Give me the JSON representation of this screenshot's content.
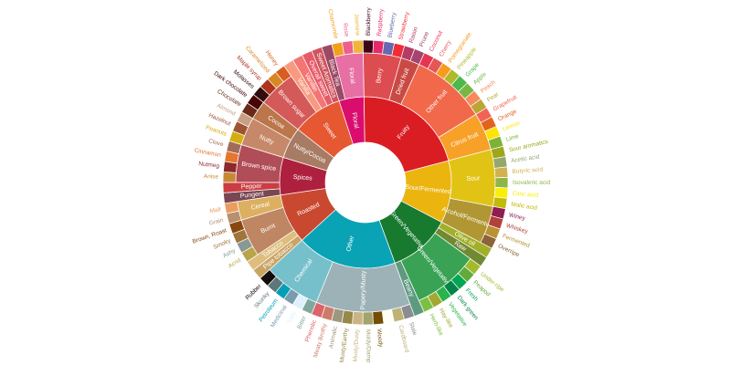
{
  "chart_data": {
    "type": "sunburst",
    "nodes": [
      {
        "name": "Floral",
        "color": "#da0d6e",
        "children": [
          {
            "name": "Black Tea",
            "color": "#9b4a63"
          },
          {
            "name": "Floral",
            "color": "#e76fa4",
            "children": [
              {
                "name": "Chamomile",
                "color": "#f29f1e"
              },
              {
                "name": "Rose",
                "color": "#ee5f8e"
              },
              {
                "name": "Jasmine",
                "color": "#f0b53c"
              }
            ]
          }
        ]
      },
      {
        "name": "Fruity",
        "color": "#da1d23",
        "children": [
          {
            "name": "Berry",
            "color": "#dd4c51",
            "children": [
              {
                "name": "Blackberry",
                "color": "#3e0317"
              },
              {
                "name": "Raspberry",
                "color": "#e62969"
              },
              {
                "name": "Blueberry",
                "color": "#6569b0"
              },
              {
                "name": "Strawberry",
                "color": "#ef2d36"
              }
            ]
          },
          {
            "name": "Dried fruit",
            "color": "#c94a44",
            "children": [
              {
                "name": "Raisin",
                "color": "#b53b65"
              },
              {
                "name": "Prune",
                "color": "#a5446f"
              }
            ]
          },
          {
            "name": "Other fruit",
            "color": "#f2684b",
            "children": [
              {
                "name": "Coconut",
                "color": "#e73451"
              },
              {
                "name": "Cherry",
                "color": "#e65656"
              },
              {
                "name": "Pomegranate",
                "color": "#f89a1c"
              },
              {
                "name": "Pineapple",
                "color": "#aeb92c"
              },
              {
                "name": "Grape",
                "color": "#4eb849"
              },
              {
                "name": "Apple",
                "color": "#77b843"
              },
              {
                "name": "Peach",
                "color": "#f68a5c"
              },
              {
                "name": "Pear",
                "color": "#baa635"
              }
            ]
          },
          {
            "name": "Citrus fruit",
            "color": "#f7a128",
            "children": [
              {
                "name": "Grapefruit",
                "color": "#f26355"
              },
              {
                "name": "Orange",
                "color": "#e2631e"
              },
              {
                "name": "Lemon",
                "color": "#fde404"
              },
              {
                "name": "Lime",
                "color": "#7eb138"
              }
            ]
          }
        ]
      },
      {
        "name": "Sour/Fermented",
        "color": "#ebb40f",
        "children": [
          {
            "name": "Sour",
            "color": "#e1c315",
            "children": [
              {
                "name": "Sour aromatics",
                "color": "#9ea718"
              },
              {
                "name": "Acetic acid",
                "color": "#94a76f"
              },
              {
                "name": "Butyric acid",
                "color": "#d0b24f"
              },
              {
                "name": "Isovaleric acid",
                "color": "#8eb646"
              },
              {
                "name": "Citric acid",
                "color": "#faef07"
              },
              {
                "name": "Malic acid",
                "color": "#c1ba07"
              }
            ]
          },
          {
            "name": "Alcohol/Fermented",
            "color": "#b09733",
            "children": [
              {
                "name": "Winey",
                "color": "#8f1c53"
              },
              {
                "name": "Whiskey",
                "color": "#b34039"
              },
              {
                "name": "Fermented",
                "color": "#ba9232"
              },
              {
                "name": "Overripe",
                "color": "#8b6439"
              }
            ]
          }
        ]
      },
      {
        "name": "Green/Vegetative",
        "color": "#187a2f",
        "children": [
          {
            "name": "Olive oil",
            "color": "#a2b029"
          },
          {
            "name": "Raw",
            "color": "#718933"
          },
          {
            "name": "Green/Vegetative",
            "color": "#3aa255",
            "children": [
              {
                "name": "Under-ripe",
                "color": "#a2bb2b"
              },
              {
                "name": "Peapod",
                "color": "#62aa3c"
              },
              {
                "name": "Fresh",
                "color": "#03a653"
              },
              {
                "name": "Dark green",
                "color": "#038549"
              },
              {
                "name": "Vegetative",
                "color": "#28b44b"
              },
              {
                "name": "Hay-like",
                "color": "#a3a830"
              },
              {
                "name": "Herb-like",
                "color": "#7ac141"
              }
            ]
          },
          {
            "name": "Beany",
            "color": "#5e9a80"
          }
        ]
      },
      {
        "name": "Other",
        "color": "#0aa3b5",
        "children": [
          {
            "name": "Papery/Musty",
            "color": "#9db2b7",
            "children": [
              {
                "name": "Stale",
                "color": "#8b8c90"
              },
              {
                "name": "Cardboard",
                "color": "#beb276"
              },
              {
                "name": "Papery",
                "color": "#fefef4"
              },
              {
                "name": "Woody",
                "color": "#744e03"
              },
              {
                "name": "Moldy/Damp",
                "color": "#a3a36f"
              },
              {
                "name": "Musty/Dusty",
                "color": "#c9b583"
              },
              {
                "name": "Musty/Earthy",
                "color": "#978847"
              },
              {
                "name": "Animalic",
                "color": "#9d977f"
              },
              {
                "name": "Meaty Brothy",
                "color": "#cc7b6a"
              },
              {
                "name": "Phenolic",
                "color": "#db646a"
              }
            ]
          },
          {
            "name": "Chemical",
            "color": "#76c0cb",
            "children": [
              {
                "name": "Bitter",
                "color": "#80a89d"
              },
              {
                "name": "Salty",
                "color": "#def2fd"
              },
              {
                "name": "Medicinal",
                "color": "#7a9bae"
              },
              {
                "name": "Petroleum",
                "color": "#039fb8"
              },
              {
                "name": "Skunky",
                "color": "#5e777b"
              },
              {
                "name": "Rubber",
                "color": "#120c0c"
              }
            ]
          }
        ]
      },
      {
        "name": "Roasted",
        "color": "#c94930",
        "children": [
          {
            "name": "Pipe tobacco",
            "color": "#caa465"
          },
          {
            "name": "Tobacco",
            "color": "#dfbd7e"
          },
          {
            "name": "Burnt",
            "color": "#be8663",
            "children": [
              {
                "name": "Acrid",
                "color": "#b9a449"
              },
              {
                "name": "Ashy",
                "color": "#899893"
              },
              {
                "name": "Smoky",
                "color": "#a1743b"
              },
              {
                "name": "Brown, Roast",
                "color": "#894810"
              }
            ]
          },
          {
            "name": "Cereal",
            "color": "#ddaf61",
            "children": [
              {
                "name": "Grain",
                "color": "#b7906f"
              },
              {
                "name": "Malt",
                "color": "#eb9d5f"
              }
            ]
          }
        ]
      },
      {
        "name": "Spices",
        "color": "#ad213e",
        "children": [
          {
            "name": "Pungent",
            "color": "#794752"
          },
          {
            "name": "Pepper",
            "color": "#cc3d41"
          },
          {
            "name": "Brown spice",
            "color": "#b14d57",
            "children": [
              {
                "name": "Anise",
                "color": "#c78936"
              },
              {
                "name": "Nutmeg",
                "color": "#8c292c"
              },
              {
                "name": "Cinnamon",
                "color": "#e5762e"
              },
              {
                "name": "Clove",
                "color": "#a16c5a"
              }
            ]
          }
        ]
      },
      {
        "name": "Nutty/Cocoa",
        "color": "#a87b64",
        "children": [
          {
            "name": "Nutty",
            "color": "#c78869",
            "children": [
              {
                "name": "Peanuts",
                "color": "#d4ad12"
              },
              {
                "name": "Hazelnut",
                "color": "#9d5433"
              },
              {
                "name": "Almond",
                "color": "#c89f83"
              }
            ]
          },
          {
            "name": "Cocoa",
            "color": "#bb764c",
            "children": [
              {
                "name": "Chocolate",
                "color": "#692a19"
              },
              {
                "name": "Dark chocolate",
                "color": "#470604"
              }
            ]
          }
        ]
      },
      {
        "name": "Sweet",
        "color": "#e65832",
        "children": [
          {
            "name": "Brown sugar",
            "color": "#d45a59",
            "children": [
              {
                "name": "Molasses",
                "color": "#310d0f"
              },
              {
                "name": "Maple syrup",
                "color": "#ae341f"
              },
              {
                "name": "Caramelized",
                "color": "#d78823"
              },
              {
                "name": "Honey",
                "color": "#da5c1f"
              }
            ]
          },
          {
            "name": "Vanilla",
            "color": "#f89a80"
          },
          {
            "name": "Vanillin",
            "color": "#f37674"
          },
          {
            "name": "Overall sweet",
            "color": "#e75b68"
          },
          {
            "name": "Sweet Aromatics",
            "color": "#d0545f"
          }
        ]
      }
    ]
  }
}
